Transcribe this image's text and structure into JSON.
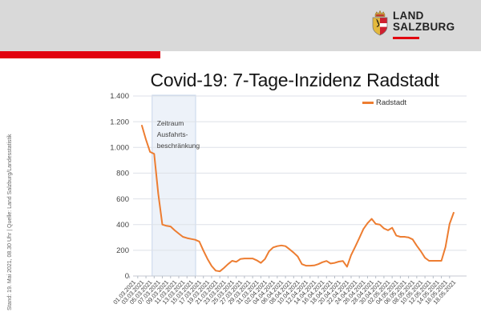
{
  "header": {
    "band_color": "#d9d9d9",
    "accent_color": "#e2000f",
    "logo": {
      "line1": "LAND",
      "line2": "SALZBURG"
    }
  },
  "source_note": "Stand: 19. Mai 2021, 08.30 Uhr | Quelle: Land Salzburg/Landesstatistik",
  "chart_data": {
    "type": "line",
    "title": "Covid-19: 7-Tage-Inzidenz Radstadt",
    "xlabel": "",
    "ylabel": "",
    "ylim": [
      0,
      1400
    ],
    "grid": true,
    "legend_position": "top-right-inside",
    "y_tick_labels": [
      "0",
      "200",
      "400",
      "600",
      "800",
      "1.000",
      "1.200",
      "1.400"
    ],
    "x_tick_labels": [
      "01.03.2021",
      "03.03.2021",
      "05.03.2021",
      "07.03.2021",
      "09.03.2021",
      "11.03.2021",
      "13.03.2021",
      "15.03.2021",
      "17.03.2021",
      "19.03.2021",
      "21.03.2021",
      "23.03.2021",
      "25.03.2021",
      "27.03.2021",
      "29.03.2021",
      "31.03.2021",
      "02.04.2021",
      "04.04.2021",
      "06.04.2021",
      "08.04.2021",
      "10.04.2021",
      "12.04.2021",
      "14.04.2021",
      "16.04.2021",
      "18.04.2021",
      "20.04.2021",
      "22.04.2021",
      "24.04.2021",
      "26.04.2021",
      "28.04.2021",
      "30.04.2021",
      "02.05.2021",
      "04.05.2021",
      "06.05.2021",
      "08.05.2021",
      "10.05.2021",
      "12.05.2021",
      "14.05.2021",
      "16.05.2021",
      "18.05.2021"
    ],
    "x_start_date": "01.03.2021",
    "x_end_date": "19.05.2021",
    "x_label_every_n_days": 2,
    "series": [
      {
        "name": "Radstadt",
        "color": "#ED7D31",
        "daily_values": [
          null,
          null,
          null,
          1170,
          1060,
          965,
          950,
          640,
          400,
          390,
          385,
          355,
          330,
          305,
          295,
          288,
          282,
          268,
          198,
          133,
          78,
          42,
          36,
          62,
          92,
          118,
          110,
          132,
          136,
          136,
          136,
          122,
          102,
          132,
          192,
          222,
          232,
          238,
          232,
          208,
          182,
          152,
          92,
          80,
          80,
          82,
          92,
          107,
          117,
          97,
          102,
          112,
          117,
          72,
          163,
          228,
          295,
          365,
          410,
          445,
          405,
          400,
          370,
          355,
          375,
          315,
          305,
          305,
          300,
          285,
          235,
          192,
          142,
          118,
          118,
          118,
          118,
          225,
          405,
          492
        ]
      }
    ],
    "annotation_band": {
      "label_lines": [
        "Zeitraum",
        "Ausfahrts-",
        "beschränkung"
      ],
      "start_day_index": 5.5,
      "end_day_index": 16.1,
      "fill": "#edf2f9",
      "border": "#c7d5eb"
    }
  }
}
